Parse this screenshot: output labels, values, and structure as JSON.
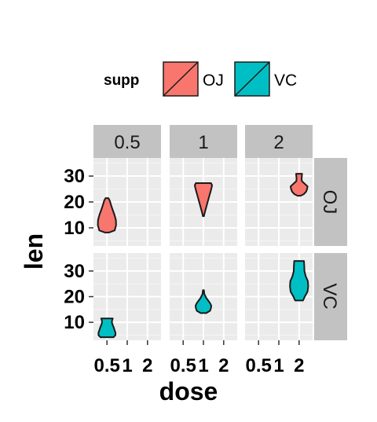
{
  "chart_data": {
    "type": "violin",
    "xlabel": "dose",
    "ylabel": "len",
    "x_tick_labels": [
      "0.5",
      "1",
      "2"
    ],
    "y_ticks": [
      10,
      20,
      30
    ],
    "ylim": [
      3,
      37
    ],
    "grid": true,
    "legend": {
      "title": "supp",
      "position": "top",
      "entries": [
        {
          "label": "OJ",
          "color": "#F8766D"
        },
        {
          "label": "VC",
          "color": "#00BFC4"
        }
      ]
    },
    "facet_cols": [
      "0.5",
      "1",
      "2"
    ],
    "facet_rows": [
      "OJ",
      "VC"
    ],
    "colors": {
      "OJ": "#F8766D",
      "VC": "#00BFC4",
      "panel_bg": "#EBEBEB",
      "strip_bg": "#C2C2C2",
      "grid": "#FFFFFF",
      "outline": "#1a1a1a"
    },
    "violins": [
      {
        "row": "OJ",
        "col": "0.5",
        "x": "0.5",
        "supp": "OJ",
        "profile": [
          [
            8.2,
            0.2
          ],
          [
            9.0,
            0.82
          ],
          [
            11.0,
            0.97
          ],
          [
            13.0,
            0.95
          ],
          [
            15.0,
            0.8
          ],
          [
            17.0,
            0.6
          ],
          [
            19.0,
            0.42
          ],
          [
            20.5,
            0.3
          ],
          [
            21.5,
            0.15
          ]
        ]
      },
      {
        "row": "OJ",
        "col": "1",
        "x": "1",
        "supp": "OJ",
        "profile": [
          [
            14.5,
            0.05
          ],
          [
            16.0,
            0.15
          ],
          [
            18.0,
            0.3
          ],
          [
            20.0,
            0.45
          ],
          [
            22.0,
            0.6
          ],
          [
            24.0,
            0.76
          ],
          [
            25.5,
            0.87
          ],
          [
            26.5,
            0.92
          ],
          [
            27.3,
            0.8
          ]
        ]
      },
      {
        "row": "OJ",
        "col": "2",
        "x": "2",
        "supp": "OJ",
        "profile": [
          [
            22.4,
            0.15
          ],
          [
            23.0,
            0.5
          ],
          [
            24.0,
            0.75
          ],
          [
            25.0,
            0.85
          ],
          [
            26.0,
            0.9
          ],
          [
            27.0,
            0.6
          ],
          [
            28.0,
            0.3
          ],
          [
            29.0,
            0.27
          ],
          [
            30.9,
            0.32
          ]
        ]
      },
      {
        "row": "VC",
        "col": "0.5",
        "x": "0.5",
        "supp": "VC",
        "profile": [
          [
            4.2,
            0.7
          ],
          [
            5.0,
            0.9
          ],
          [
            6.0,
            0.9
          ],
          [
            7.0,
            0.8
          ],
          [
            8.0,
            0.72
          ],
          [
            9.0,
            0.6
          ],
          [
            10.0,
            0.52
          ],
          [
            11.0,
            0.56
          ],
          [
            11.5,
            0.62
          ]
        ]
      },
      {
        "row": "VC",
        "col": "1",
        "x": "1",
        "supp": "VC",
        "profile": [
          [
            13.6,
            0.3
          ],
          [
            14.5,
            0.7
          ],
          [
            15.5,
            0.8
          ],
          [
            16.5,
            0.83
          ],
          [
            17.5,
            0.7
          ],
          [
            18.5,
            0.5
          ],
          [
            19.5,
            0.3
          ],
          [
            21.0,
            0.1
          ],
          [
            22.5,
            0.05
          ]
        ]
      },
      {
        "row": "VC",
        "col": "2",
        "x": "2",
        "supp": "VC",
        "profile": [
          [
            18.5,
            0.42
          ],
          [
            20.0,
            0.6
          ],
          [
            22.0,
            0.9
          ],
          [
            24.0,
            0.97
          ],
          [
            26.0,
            0.93
          ],
          [
            28.0,
            0.7
          ],
          [
            30.0,
            0.57
          ],
          [
            32.0,
            0.55
          ],
          [
            33.9,
            0.52
          ]
        ]
      }
    ]
  }
}
